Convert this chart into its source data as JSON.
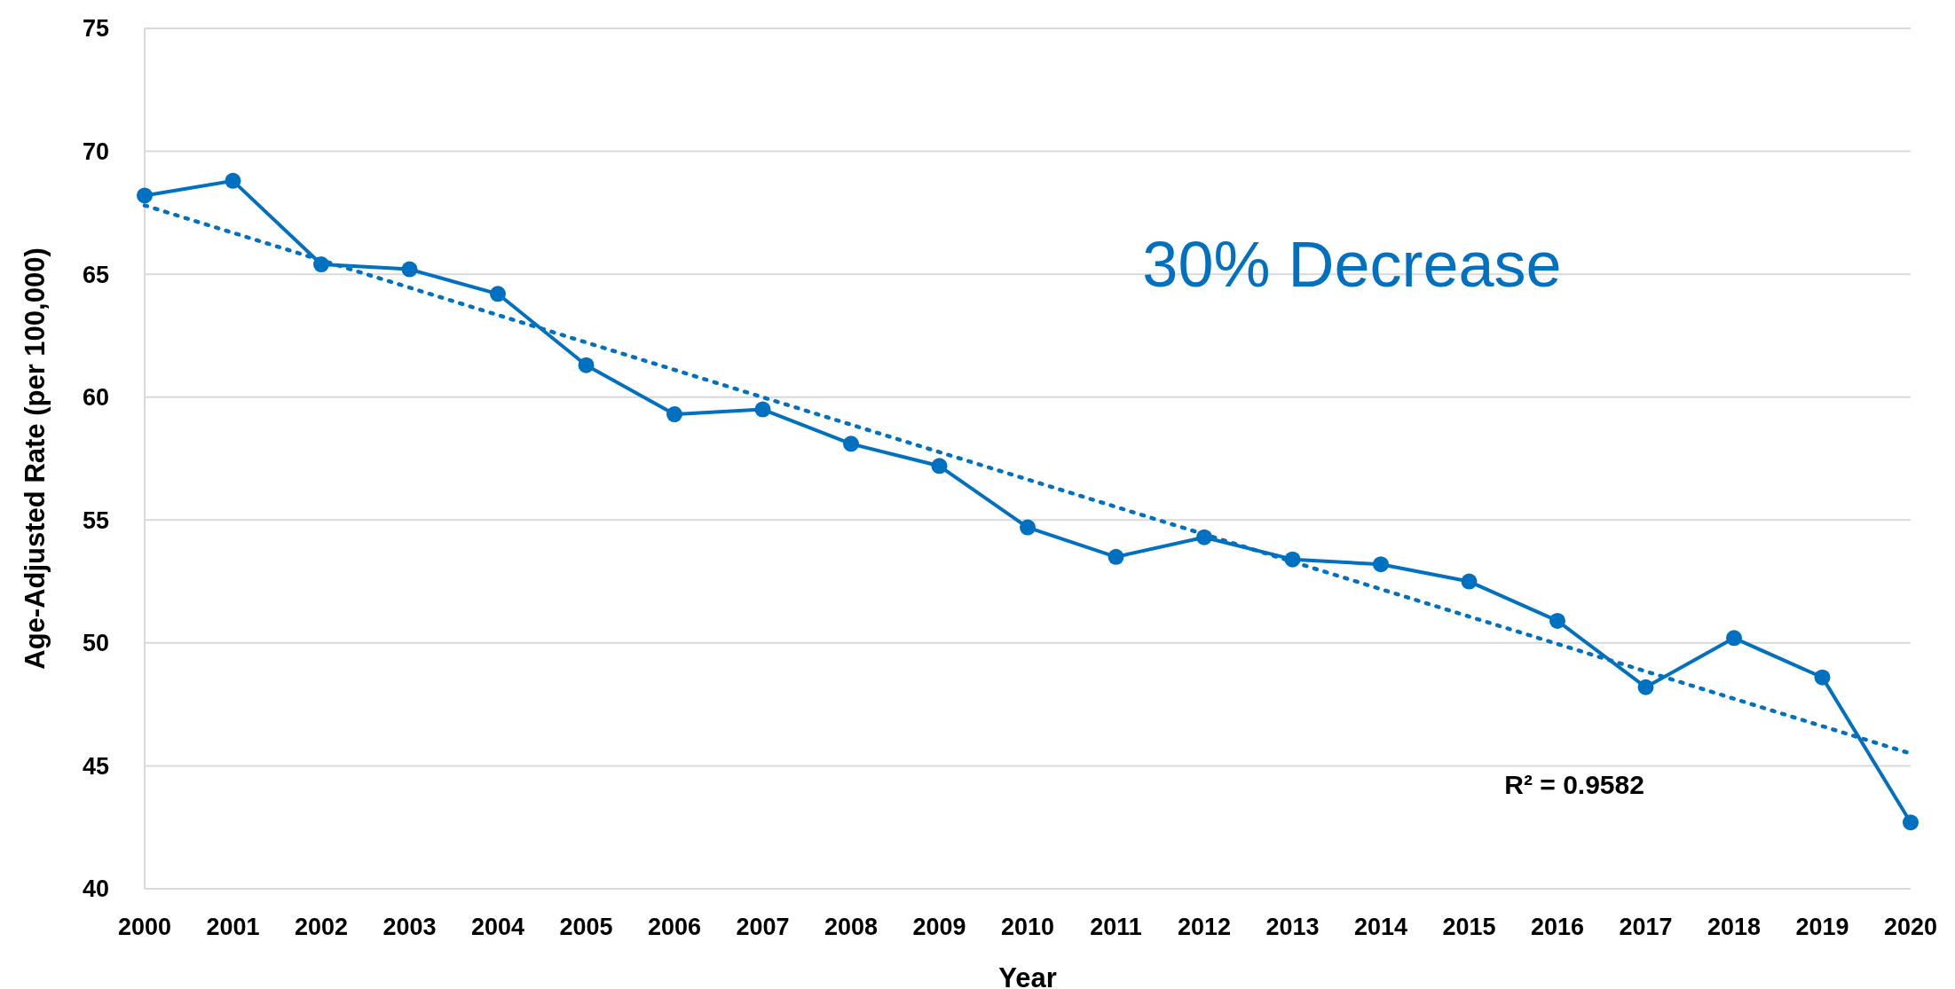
{
  "chart_data": {
    "type": "line",
    "xlabel": "Year",
    "ylabel": "Age-Adjusted Rate (per 100,000)",
    "x": [
      2000,
      2001,
      2002,
      2003,
      2004,
      2005,
      2006,
      2007,
      2008,
      2009,
      2010,
      2011,
      2012,
      2013,
      2014,
      2015,
      2016,
      2017,
      2018,
      2019,
      2020
    ],
    "series": [
      {
        "color": "#0070c0",
        "marker": "circle",
        "line_style": "solid",
        "values": [
          68.2,
          68.8,
          65.4,
          65.2,
          64.2,
          61.3,
          59.3,
          59.5,
          58.1,
          57.2,
          54.7,
          53.5,
          54.3,
          53.4,
          53.2,
          52.5,
          50.9,
          48.2,
          50.2,
          48.6,
          42.7
        ]
      },
      {
        "type": "line",
        "color": "#0070c0",
        "marker": "none",
        "line_style": "dotted",
        "x": [
          2000,
          2020
        ],
        "values": [
          67.8,
          45.5
        ]
      }
    ],
    "xlim": [
      2000,
      2020
    ],
    "xticks": [
      2000,
      2001,
      2002,
      2003,
      2004,
      2005,
      2006,
      2007,
      2008,
      2009,
      2010,
      2011,
      2012,
      2013,
      2014,
      2015,
      2016,
      2017,
      2018,
      2019,
      2020
    ],
    "ylim": [
      40,
      75
    ],
    "yticks": [
      40,
      45,
      50,
      55,
      60,
      65,
      70,
      75
    ],
    "grid": "y",
    "annotations": [
      "30% Decrease",
      "R² = 0.9582"
    ]
  }
}
